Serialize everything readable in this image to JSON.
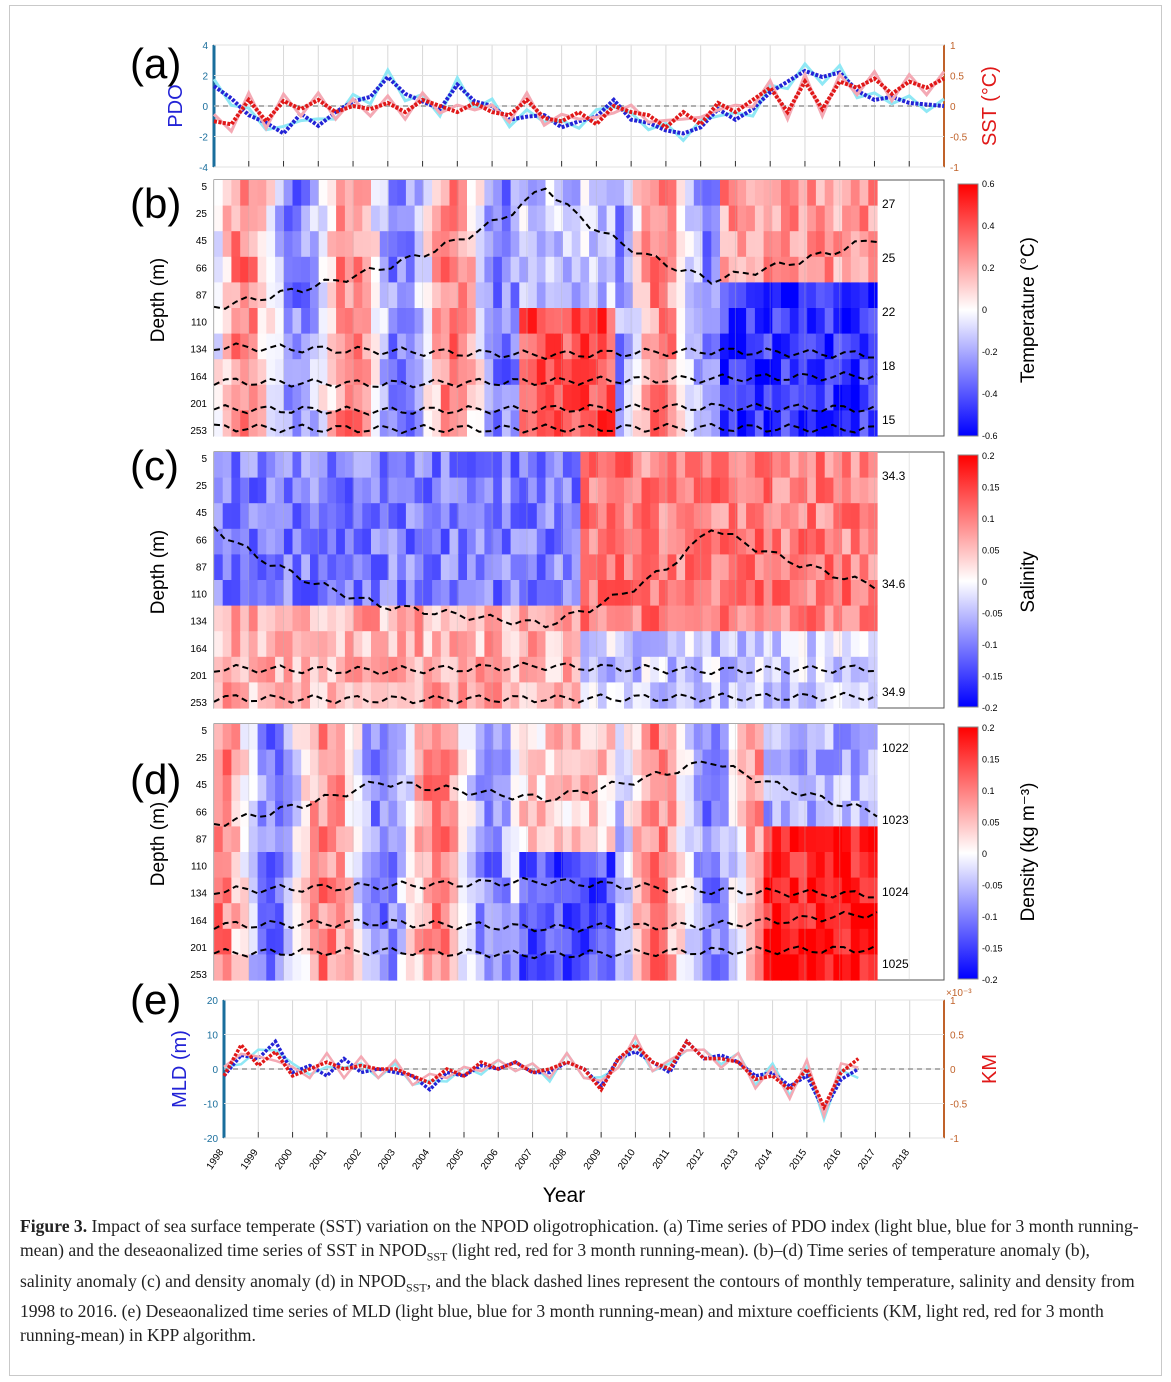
{
  "panels": {
    "a": {
      "label": "(a)",
      "left_axis_label": "PDO",
      "right_axis_label": "SST (°C)",
      "left_ticks": [
        "4",
        "2",
        "0",
        "-2",
        "-4"
      ],
      "right_ticks": [
        "1",
        "0.5",
        "0",
        "-0.5",
        "-1"
      ]
    },
    "b": {
      "label": "(b)",
      "ylabel": "Depth (m)",
      "colorbar_label": "Temperature (°C)",
      "colorbar_ticks": [
        "0.6",
        "0.4",
        "0.2",
        "0",
        "-0.2",
        "-0.4",
        "-0.6"
      ],
      "contour_labels": [
        "27",
        "25",
        "22",
        "18",
        "15"
      ]
    },
    "c": {
      "label": "(c)",
      "ylabel": "Depth (m)",
      "colorbar_label": "Salinity",
      "colorbar_ticks": [
        "0.2",
        "0.15",
        "0.1",
        "0.05",
        "0",
        "-0.05",
        "-0.1",
        "-0.15",
        "-0.2"
      ],
      "contour_labels": [
        "34.3",
        "34.6",
        "34.9"
      ]
    },
    "d": {
      "label": "(d)",
      "ylabel": "Depth (m)",
      "colorbar_label": "Density (kg m⁻³)",
      "colorbar_ticks": [
        "0.2",
        "0.15",
        "0.1",
        "0.05",
        "0",
        "-0.05",
        "-0.1",
        "-0.15",
        "-0.2"
      ],
      "contour_labels": [
        "1022",
        "1023",
        "1024",
        "1025"
      ]
    },
    "e": {
      "label": "(e)",
      "left_axis_label": "MLD (m)",
      "right_axis_label": "KM",
      "right_axis_exponent": "×10⁻³",
      "left_ticks": [
        "20",
        "10",
        "0",
        "-10",
        "-20"
      ],
      "right_ticks": [
        "1",
        "0.5",
        "0",
        "-0.5",
        "-1"
      ]
    }
  },
  "depth_ticks": [
    "5",
    "25",
    "45",
    "66",
    "87",
    "110",
    "134",
    "164",
    "201",
    "253"
  ],
  "years": [
    "1998",
    "1999",
    "2000",
    "2001",
    "2002",
    "2003",
    "2004",
    "2005",
    "2006",
    "2007",
    "2008",
    "2009",
    "2010",
    "2011",
    "2012",
    "2013",
    "2014",
    "2015",
    "2016",
    "2017",
    "2018"
  ],
  "xlabel": "Year",
  "caption": {
    "lead": "Figure 3.",
    "text": "Impact of sea surface temperate (SST) variation on the NPOD oligotrophication. (a) Time series of PDO index (light blue, blue for 3 month running-mean) and the deseaonalized time series of SST in NPOD",
    "sub1": "SST",
    "text2": " (light red, red for 3 month running-mean). (b)–(d) Time series of temperature anomaly (b), salinity anomaly (c) and density anomaly (d) in NPOD",
    "sub2": "SST",
    "text3": ", and the black dashed lines represent the contours of monthly temperature, salinity and density from 1998 to 2016. (e) Deseaonalized time series of MLD (light blue, blue for 3 month running-mean) and mixture coefficients (KM, light red, red for 3 month running-mean) in KPP algorithm."
  },
  "colors": {
    "pdo": "#2323d6",
    "pdo_light": "#8fe8f5",
    "sst": "#e01818",
    "sst_light": "#f4a9b4",
    "left_axis": "#1a6e9c",
    "right_axis": "#c0622a"
  },
  "chart_data": [
    {
      "panel": "a",
      "type": "line",
      "x_range": [
        1998,
        2019
      ],
      "series": [
        {
          "name": "PDO",
          "axis": "left",
          "x": [
            1998,
            1998.5,
            1999,
            1999.5,
            2000,
            2000.5,
            2001,
            2001.5,
            2002,
            2002.5,
            2003,
            2003.5,
            2004,
            2004.5,
            2005,
            2005.5,
            2006,
            2006.5,
            2007,
            2007.5,
            2008,
            2008.5,
            2009,
            2009.5,
            2010,
            2010.5,
            2011,
            2011.5,
            2012,
            2012.5,
            2013,
            2013.5,
            2014,
            2014.5,
            2015,
            2015.5,
            2016,
            2016.5,
            2017,
            2017.5,
            2018,
            2018.5,
            2019
          ],
          "y": [
            1.3,
            0.5,
            -0.6,
            -1.1,
            -1.8,
            -0.5,
            -1.3,
            -0.4,
            0.3,
            0.6,
            1.9,
            0.8,
            0.3,
            -0.2,
            1.4,
            0.3,
            0,
            -0.9,
            -0.7,
            -0.6,
            -1.4,
            -1.0,
            -0.7,
            0.4,
            -0.9,
            -1.1,
            -1.6,
            -1.8,
            -1.4,
            -0.2,
            -0.9,
            -0.2,
            0.9,
            1.6,
            2.3,
            1.9,
            2.2,
            1.0,
            0.4,
            0.6,
            0.2,
            0.1,
            0.0
          ]
        },
        {
          "name": "SST",
          "axis": "right",
          "x": [
            1998,
            1998.5,
            1999,
            1999.5,
            2000,
            2000.5,
            2001,
            2001.5,
            2002,
            2002.5,
            2003,
            2003.5,
            2004,
            2004.5,
            2005,
            2005.5,
            2006,
            2006.5,
            2007,
            2007.5,
            2008,
            2008.5,
            2009,
            2009.5,
            2010,
            2010.5,
            2011,
            2011.5,
            2012,
            2012.5,
            2013,
            2013.5,
            2014,
            2014.5,
            2015,
            2015.5,
            2016,
            2016.5,
            2017,
            2017.5,
            2018,
            2018.5,
            2019
          ],
          "y": [
            -0.25,
            -0.3,
            0.1,
            -0.25,
            0.08,
            -0.05,
            0.1,
            -0.1,
            0,
            -0.05,
            0.05,
            -0.1,
            0.1,
            0,
            -0.1,
            0.05,
            -0.1,
            -0.15,
            0.1,
            -0.2,
            -0.25,
            -0.1,
            -0.3,
            0,
            -0.1,
            -0.15,
            -0.35,
            -0.1,
            -0.3,
            0.05,
            -0.1,
            0.1,
            0.3,
            -0.1,
            0.4,
            -0.05,
            0.4,
            0.3,
            0.45,
            0.2,
            0.4,
            0.3,
            0.45
          ]
        }
      ],
      "ylim_left": [
        -4,
        4
      ],
      "ylim_right": [
        -1,
        1
      ]
    },
    {
      "panel": "b",
      "type": "heatmap",
      "quantity": "temperature anomaly",
      "units": "°C",
      "x_range": [
        1998,
        2017
      ],
      "depths": [
        5,
        25,
        45,
        66,
        87,
        110,
        134,
        164,
        201,
        253
      ],
      "color_range": [
        -0.6,
        0.6
      ],
      "contour_levels": [
        27,
        25,
        22,
        18,
        15
      ],
      "contour_depths": [
        [
          45,
          25,
          5,
          30,
          15
        ],
        [
          80,
          85,
          90,
          85,
          90
        ],
        [
          130,
          135,
          130,
          125,
          120
        ],
        [
          190,
          195,
          190,
          185,
          190
        ],
        [
          245,
          250,
          248,
          245,
          250
        ]
      ]
    },
    {
      "panel": "c",
      "type": "heatmap",
      "quantity": "salinity anomaly",
      "x_range": [
        1998,
        2017
      ],
      "depths": [
        5,
        25,
        45,
        66,
        87,
        110,
        134,
        164,
        201,
        253
      ],
      "color_range": [
        -0.2,
        0.2
      ],
      "contour_levels": [
        34.3,
        34.6,
        34.9
      ],
      "contour_depths": [
        [
          20,
          66,
          87,
          20,
          50
        ],
        [
          160,
          165,
          155,
          165,
          160
        ],
        [
          240,
          245,
          242,
          238,
          235
        ]
      ]
    },
    {
      "panel": "d",
      "type": "heatmap",
      "quantity": "density anomaly",
      "units": "kg m⁻³",
      "x_range": [
        1998,
        2017
      ],
      "depths": [
        5,
        25,
        45,
        66,
        87,
        110,
        134,
        164,
        201,
        253
      ],
      "color_range": [
        -0.2,
        0.2
      ],
      "contour_levels": [
        1022,
        1023,
        1024,
        1025
      ],
      "contour_depths": [
        [
          30,
          15,
          20,
          10,
          25
        ],
        [
          80,
          75,
          70,
          80,
          85
        ],
        [
          130,
          125,
          135,
          130,
          110
        ],
        [
          190,
          185,
          195,
          185,
          180
        ]
      ]
    },
    {
      "panel": "e",
      "type": "line",
      "x_range": [
        1998,
        2019
      ],
      "series": [
        {
          "name": "MLD",
          "axis": "left",
          "x": [
            1998,
            1998.5,
            1999,
            1999.5,
            2000,
            2000.5,
            2001,
            2001.5,
            2002,
            2002.5,
            2003,
            2003.5,
            2004,
            2004.5,
            2005,
            2005.5,
            2006,
            2006.5,
            2007,
            2007.5,
            2008,
            2008.5,
            2009,
            2009.5,
            2010,
            2010.5,
            2011,
            2011.5,
            2012,
            2012.5,
            2013,
            2013.5,
            2014,
            2014.5,
            2015,
            2015.5,
            2016,
            2016.5
          ],
          "y": [
            -2,
            4,
            3,
            8,
            -1,
            1,
            -2,
            3,
            -1,
            0,
            -1,
            -2,
            -6,
            -1,
            -2,
            1,
            0,
            2,
            -1,
            -1,
            2,
            0,
            -5,
            3,
            5,
            2,
            -1,
            8,
            3,
            4,
            2,
            -2,
            -1,
            -5,
            -2,
            -12,
            -3,
            0
          ]
        },
        {
          "name": "KM",
          "axis": "right",
          "x": [
            1998,
            1998.5,
            1999,
            1999.5,
            2000,
            2000.5,
            2001,
            2001.5,
            2002,
            2002.5,
            2003,
            2003.5,
            2004,
            2004.5,
            2005,
            2005.5,
            2006,
            2006.5,
            2007,
            2007.5,
            2008,
            2008.5,
            2009,
            2009.5,
            2010,
            2010.5,
            2011,
            2011.5,
            2012,
            2012.5,
            2013,
            2013.5,
            2014,
            2014.5,
            2015,
            2015.5,
            2016,
            2016.5
          ],
          "y": [
            -0.1,
            0.35,
            0.05,
            0.25,
            -0.1,
            0,
            0.1,
            0,
            0.05,
            0,
            0,
            -0.1,
            -0.2,
            0,
            -0.1,
            0.1,
            0,
            0.1,
            -0.05,
            0,
            0.1,
            0,
            -0.3,
            0.15,
            0.35,
            0.1,
            0,
            0.4,
            0.15,
            0.15,
            0.1,
            -0.15,
            -0.1,
            -0.3,
            0,
            -0.55,
            -0.05,
            0.15
          ]
        }
      ],
      "ylim_left": [
        -20,
        20
      ],
      "ylim_right_x1e3": [
        -1,
        1
      ]
    }
  ]
}
